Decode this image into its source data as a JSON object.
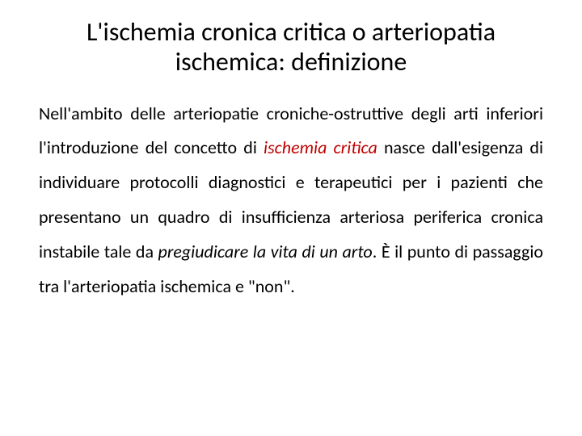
{
  "title_color": "#000000",
  "body_color": "#000000",
  "emphasis_color": "#c00000",
  "background_color": "#ffffff",
  "title_fontsize": 32,
  "body_fontsize": 22,
  "title": "L'ischemia cronica critica o arteriopatia ischemica: definizione",
  "p1_a": "Nell'ambito delle arteriopatie croniche-ostruttive degli arti inferiori l'introduzione del concetto di ",
  "p1_em1": "ischemia critica",
  "p1_b": " nasce dall'esigenza di individuare protocolli diagnostici e terapeutici per i pazienti che presentano un quadro di insufficienza arteriosa periferica cronica instabile tale da ",
  "p1_em2": "pregiudicare la vita di un arto",
  "p1_c": ". È il punto di passaggio tra l'arteriopatia ischemica e \"non\"."
}
